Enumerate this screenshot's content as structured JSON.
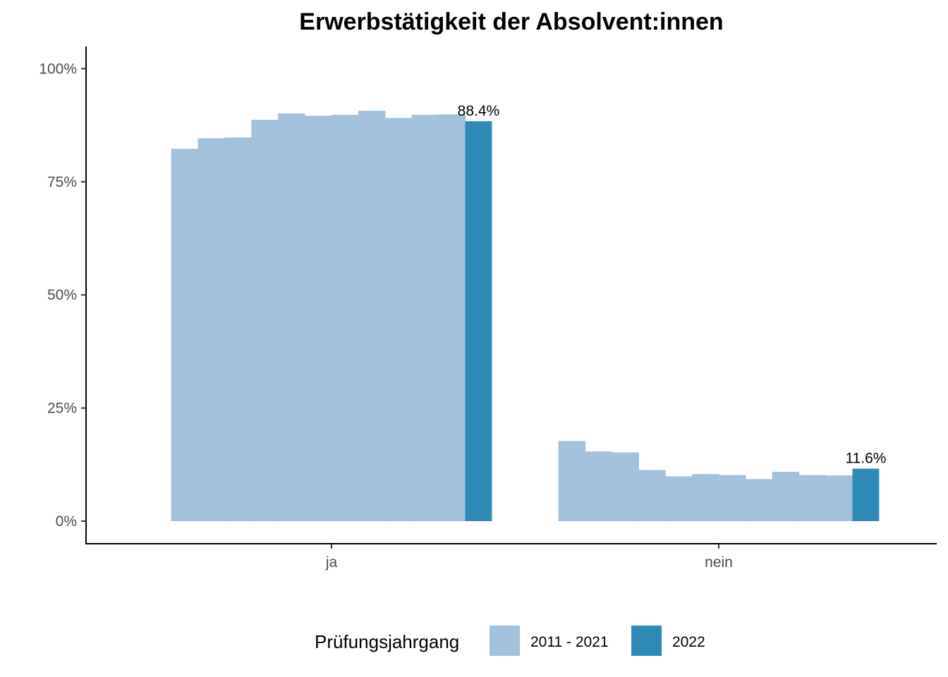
{
  "chart_data": {
    "type": "bar",
    "title": "Erwerbstätigkeit der Absolvent:innen",
    "xlabel": "",
    "ylabel": "",
    "ylim": [
      0,
      1.05
    ],
    "y_ticks": [
      {
        "value": 0,
        "label": "0%"
      },
      {
        "value": 0.25,
        "label": "25%"
      },
      {
        "value": 0.5,
        "label": "50%"
      },
      {
        "value": 0.75,
        "label": "75%"
      },
      {
        "value": 1.0,
        "label": "100%"
      }
    ],
    "categories": [
      "ja",
      "nein"
    ],
    "grid": false,
    "legend": {
      "title": "Prüfungsjahrgang",
      "placement": "bottom",
      "entries": [
        {
          "label": "2011 - 2021",
          "color": "#a1c1dc"
        },
        {
          "label": "2022",
          "color": "#2e8bb8"
        }
      ]
    },
    "series": [
      {
        "name": "2011 - 2021",
        "color": "#a1c1dc",
        "values": [
          [
            0.823,
            0.846,
            0.848,
            0.887,
            0.901,
            0.896,
            0.898,
            0.907,
            0.891,
            0.898,
            0.899
          ],
          [
            0.177,
            0.154,
            0.152,
            0.113,
            0.099,
            0.104,
            0.102,
            0.093,
            0.109,
            0.102,
            0.101
          ]
        ]
      },
      {
        "name": "2022",
        "color": "#2e8bb8",
        "values": [
          0.884,
          0.116
        ],
        "data_labels": [
          "88.4%",
          "11.6%"
        ]
      }
    ]
  }
}
